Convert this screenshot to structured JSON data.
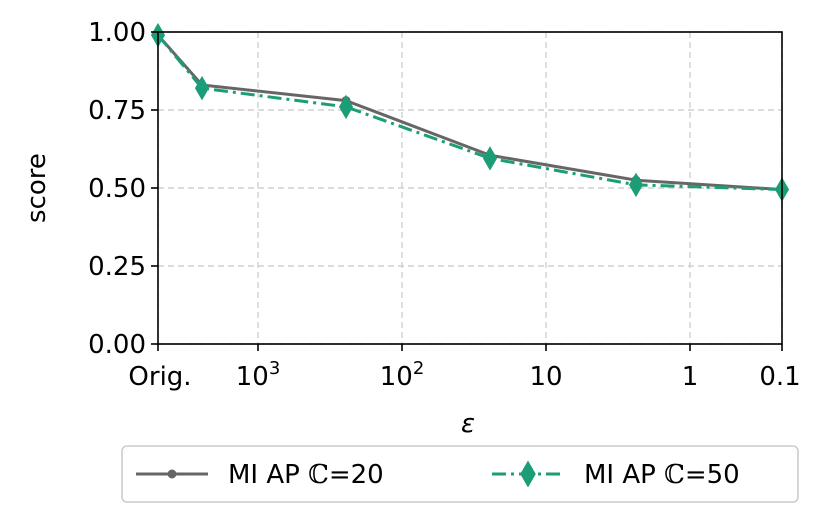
{
  "chart_data": {
    "type": "line",
    "title": "",
    "xlabel": "ε",
    "ylabel": "score",
    "x_tick_labels": [
      "Orig.",
      "10",
      "10",
      "10",
      "1",
      "0.1"
    ],
    "x_tick_exponents": [
      "",
      "3",
      "2",
      "",
      "",
      ""
    ],
    "y_tick_labels": [
      "0.00",
      "0.25",
      "0.50",
      "0.75",
      "1.00"
    ],
    "y_ticks": [
      0.0,
      0.25,
      0.5,
      0.75,
      1.0
    ],
    "ylim": [
      0.0,
      1.0
    ],
    "grid": true,
    "legend_placement": "bottom-center",
    "series": [
      {
        "name_prefix": "MI AP ",
        "name_symbol": "ℂ",
        "name_suffix": "=20",
        "color": "#666666",
        "marker": "circle",
        "line_style": "solid",
        "values": [
          0.99,
          0.83,
          0.78,
          0.605,
          0.525,
          0.495
        ]
      },
      {
        "name_prefix": "MI AP ",
        "name_symbol": "ℂ",
        "name_suffix": "=50",
        "color": "#1b9e77",
        "marker": "diamond",
        "line_style": "dashdot",
        "values": [
          0.99,
          0.82,
          0.76,
          0.595,
          0.51,
          0.495
        ]
      }
    ]
  }
}
